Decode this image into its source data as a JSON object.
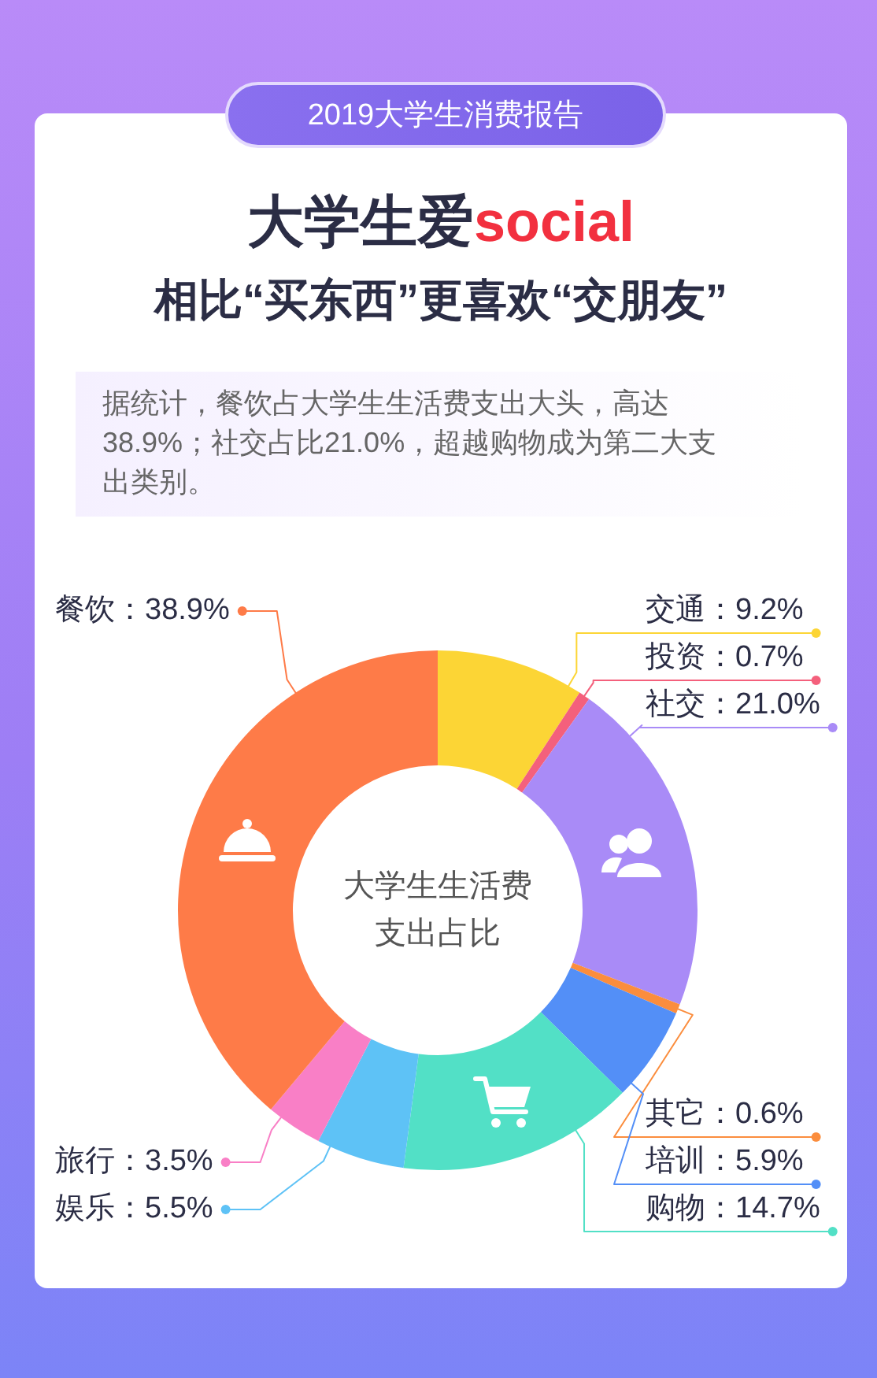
{
  "chart_data": {
    "type": "donut",
    "title": "大学生爱social",
    "subtitle": "相比“买东西”更喜欢“交朋友”",
    "annotations": [
      "2019大学生消费报告",
      "据统计，餐饮占大学生生活费支出大头，高达38.9%；社交占比21.0%，超越购物成为第二大支出类别。",
      "大学生生活费支出占比"
    ],
    "categories": [
      "交通",
      "投资",
      "社交",
      "其它",
      "培训",
      "购物",
      "娱乐",
      "旅行",
      "餐饮"
    ],
    "values": [
      9.2,
      0.7,
      21.0,
      0.6,
      5.9,
      14.7,
      5.5,
      3.5,
      38.9
    ],
    "value_labels": [
      "9.2%",
      "0.7%",
      "21.0%",
      "0.6%",
      "5.9%",
      "14.7%",
      "5.5%",
      "3.5%",
      "38.9%"
    ],
    "colors": [
      "#fcd535",
      "#f4607c",
      "#a98bf7",
      "#fb8d3d",
      "#538ff7",
      "#52e0c6",
      "#5ec2f6",
      "#f97fc6",
      "#fe7b48"
    ]
  }
}
